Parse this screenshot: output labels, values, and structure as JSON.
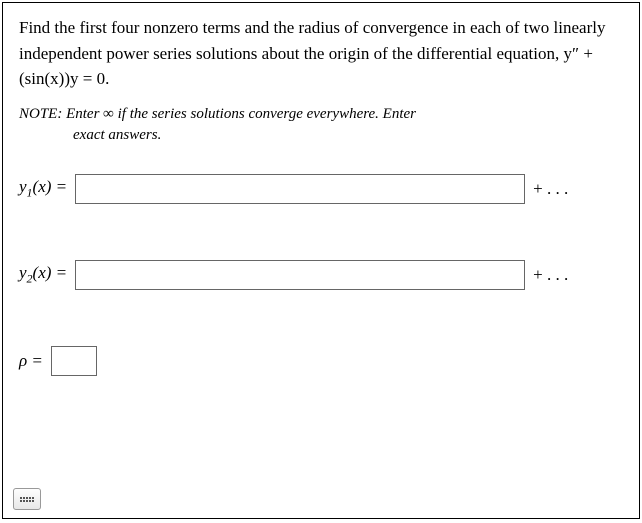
{
  "problem": {
    "text": "Find the first four nonzero terms and the radius of convergence in each of two linearly independent power series solutions about the origin of the differential equation, y″ + (sin(x))y = 0."
  },
  "note": {
    "line1": "NOTE: Enter ∞ if the series solutions converge everywhere. Enter",
    "line2": "exact answers."
  },
  "inputs": {
    "y1": {
      "label_pre": "y",
      "label_sub": "1",
      "label_post": "(x) = ",
      "value": "",
      "trailing": "+ . . ."
    },
    "y2": {
      "label_pre": "y",
      "label_sub": "2",
      "label_post": "(x) = ",
      "value": "",
      "trailing": "+ . . ."
    },
    "rho": {
      "label": "ρ = ",
      "value": ""
    }
  },
  "colors": {
    "border": "#000000",
    "text": "#000000",
    "input_border": "#666666",
    "background": "#ffffff"
  }
}
